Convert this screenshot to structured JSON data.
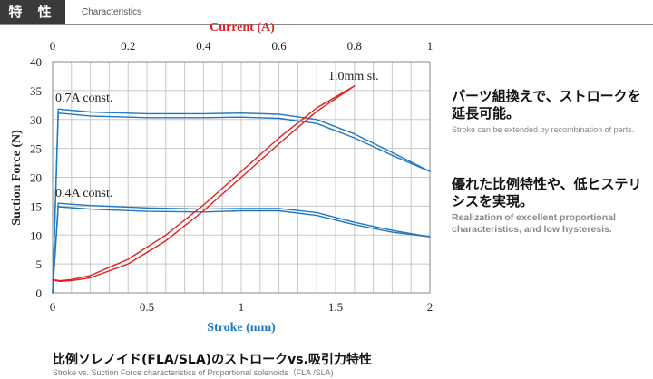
{
  "header": {
    "title": "特 性",
    "subtitle": "Characteristics"
  },
  "colors": {
    "current_series": "#e02020",
    "force_series": "#1f78c0",
    "header_bg": "#3a3a3a",
    "grid": "#c8c8c8"
  },
  "chart_data": {
    "type": "line",
    "xlabel": "Stroke (mm)",
    "ylabel": "Suction Force (N)",
    "x2label": "Current (A)",
    "xlim": [
      0,
      2
    ],
    "ylim": [
      0,
      40
    ],
    "x2lim": [
      0,
      1
    ],
    "xticks": [
      "0",
      "0.5",
      "1",
      "1.5",
      "2"
    ],
    "yticks": [
      "0",
      "5",
      "10",
      "15",
      "20",
      "25",
      "30",
      "35",
      "40"
    ],
    "x2ticks": [
      "0",
      "0.2",
      "0.4",
      "0.6",
      "0.8",
      "1"
    ],
    "grid": true,
    "annotations": {
      "high": "0.7A const.",
      "low": "0.4A const.",
      "stroke": "1.0mm st."
    },
    "series": [
      {
        "axis": "stroke",
        "color": "#1f78c0",
        "x": [
          0,
          0.03,
          0.2,
          0.5,
          0.8,
          1.0,
          1.2,
          1.4,
          1.6,
          1.8,
          2.0
        ],
        "y": [
          0,
          31.8,
          31.3,
          31.0,
          31.0,
          31.1,
          30.9,
          30.0,
          27.5,
          24.3,
          21.0
        ]
      },
      {
        "axis": "stroke",
        "color": "#1f78c0",
        "x": [
          0,
          0.03,
          0.2,
          0.5,
          0.8,
          1.0,
          1.2,
          1.4,
          1.6,
          1.8,
          2.0
        ],
        "y": [
          0,
          31.1,
          30.6,
          30.3,
          30.3,
          30.4,
          30.2,
          29.3,
          26.8,
          23.8,
          21.0
        ]
      },
      {
        "axis": "stroke",
        "color": "#1f78c0",
        "x": [
          0,
          0.03,
          0.2,
          0.5,
          0.8,
          1.0,
          1.2,
          1.4,
          1.6,
          1.8,
          2.0
        ],
        "y": [
          0,
          15.5,
          15.1,
          14.7,
          14.5,
          14.6,
          14.6,
          13.9,
          12.2,
          10.8,
          9.7
        ]
      },
      {
        "axis": "stroke",
        "color": "#1f78c0",
        "x": [
          0,
          0.03,
          0.2,
          0.5,
          0.8,
          1.0,
          1.2,
          1.4,
          1.6,
          1.8,
          2.0
        ],
        "y": [
          0,
          14.9,
          14.5,
          14.1,
          14.0,
          14.2,
          14.2,
          13.4,
          11.8,
          10.5,
          9.7
        ]
      },
      {
        "axis": "current",
        "color": "#e02020",
        "x": [
          0,
          0.02,
          0.05,
          0.1,
          0.2,
          0.3,
          0.4,
          0.5,
          0.6,
          0.7,
          0.8
        ],
        "y": [
          2.3,
          2.1,
          2.3,
          3.0,
          5.8,
          10.0,
          15.2,
          21.0,
          26.8,
          32.0,
          35.8
        ]
      },
      {
        "axis": "current",
        "color": "#e02020",
        "x": [
          0,
          0.02,
          0.05,
          0.1,
          0.2,
          0.3,
          0.4,
          0.5,
          0.6,
          0.7,
          0.8
        ],
        "y": [
          2.2,
          2.0,
          2.1,
          2.6,
          5.0,
          9.0,
          14.2,
          20.0,
          25.8,
          31.4,
          35.8
        ]
      }
    ]
  },
  "notes": [
    {
      "jp": "パーツ組換えで、ストロークを延長可能。",
      "en": "Stroke can be extended by recombination of parts."
    },
    {
      "jp": "優れた比例特性や、低ヒステリシスを実現。",
      "en": "Realization of excellent proportional characteristics, and low hysteresis."
    }
  ],
  "footer": {
    "jp": "比例ソレノイド(FLA/SLA)のストロークvs.吸引力特性",
    "en": "Stroke vs. Suction Force characteristics of Proportional solenoids（FLA /SLA)"
  }
}
